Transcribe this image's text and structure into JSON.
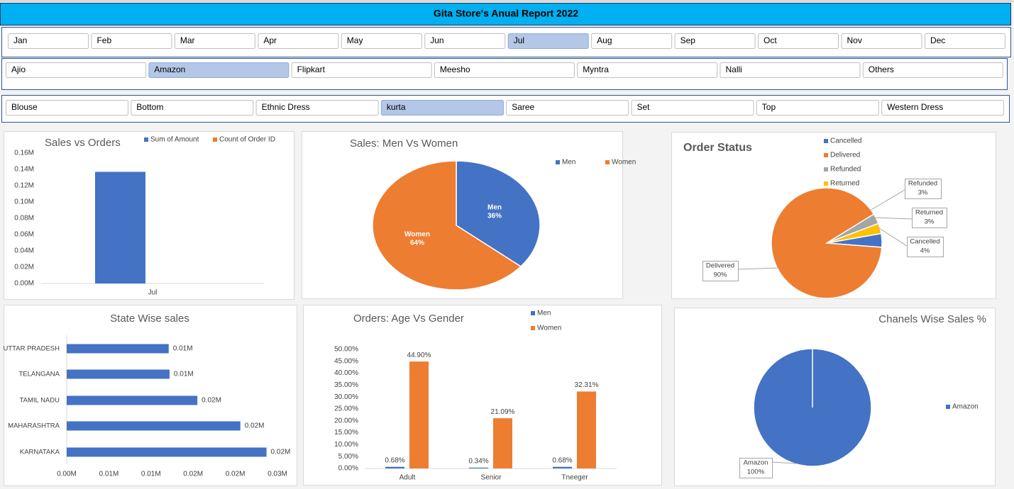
{
  "header": {
    "title": "Gita Store's Anual Report 2022"
  },
  "slicers": [
    {
      "items": [
        "Jan",
        "Feb",
        "Mar",
        "Apr",
        "May",
        "Jun",
        "Jul",
        "Aug",
        "Sep",
        "Oct",
        "Nov",
        "Dec"
      ],
      "selected": 6
    },
    {
      "items": [
        "Ajio",
        "Amazon",
        "Flipkart",
        "Meesho",
        "Myntra",
        "Nalli",
        "Others"
      ],
      "selected": 1
    },
    {
      "items": [
        "Blouse",
        "Bottom",
        "Ethnic Dress",
        "kurta",
        "Saree",
        "Set",
        "Top",
        "Western Dress"
      ],
      "selected": 3
    }
  ],
  "chart_data": [
    {
      "type": "bar",
      "title": "Sales vs Orders",
      "categories": [
        "Jul"
      ],
      "series": [
        {
          "name": "Sum of Amount",
          "color": "#4472c4",
          "values": [
            0.137
          ]
        },
        {
          "name": "Count of Order ID",
          "color": "#ed7d31",
          "values": [
            0
          ]
        }
      ],
      "ylim": [
        0,
        0.16
      ],
      "yticks": [
        {
          "value": 0,
          "label": "0.00M"
        },
        {
          "value": 0.02,
          "label": "0.02M"
        },
        {
          "value": 0.04,
          "label": "0.04M"
        },
        {
          "value": 0.06,
          "label": "0.06M"
        },
        {
          "value": 0.08,
          "label": "0.08M"
        },
        {
          "value": 0.1,
          "label": "0.10M"
        },
        {
          "value": 0.12,
          "label": "0.12M"
        },
        {
          "value": 0.14,
          "label": "0.14M"
        },
        {
          "value": 0.16,
          "label": "0.16M"
        }
      ],
      "legend": "top"
    },
    {
      "type": "pie",
      "title": "Sales: Men Vs Women",
      "categories": [
        "Men",
        "Women"
      ],
      "values": [
        36,
        64
      ],
      "value_labels": [
        "36%",
        "64%"
      ],
      "colors": [
        "#4472c4",
        "#ed7d31"
      ],
      "legend": "top"
    },
    {
      "type": "pie",
      "title": "Order Status",
      "categories": [
        "Cancelled",
        "Delivered",
        "Refunded",
        "Returned"
      ],
      "values": [
        4,
        90,
        3,
        3
      ],
      "value_labels": [
        "4%",
        "90%",
        "3%",
        "3%"
      ],
      "colors": [
        "#4472c4",
        "#ed7d31",
        "#a5a5a5",
        "#ffc000"
      ],
      "legend": "top"
    },
    {
      "type": "hbar",
      "title": "State Wise sales",
      "categories": [
        "UTTAR PRADESH",
        "TELANGANA",
        "TAMIL NADU",
        "MAHARASHTRA",
        "KARNATAKA"
      ],
      "values": [
        0.0121,
        0.0122,
        0.0155,
        0.0206,
        0.0237
      ],
      "value_labels": [
        "0.01M",
        "0.01M",
        "0.02M",
        "0.02M",
        "0.02M"
      ],
      "color": "#4472c4",
      "xlim": [
        0,
        0.025
      ],
      "xticks": [
        {
          "value": 0,
          "label": "0.00M"
        },
        {
          "value": 0.005,
          "label": "0.01M"
        },
        {
          "value": 0.01,
          "label": "0.01M"
        },
        {
          "value": 0.015,
          "label": "0.02M"
        },
        {
          "value": 0.02,
          "label": "0.02M"
        },
        {
          "value": 0.025,
          "label": "0.03M"
        }
      ]
    },
    {
      "type": "bar",
      "title": "Orders: Age Vs Gender",
      "categories": [
        "Adult",
        "Senior",
        "Tneeger"
      ],
      "series": [
        {
          "name": "Men",
          "color": "#4472c4",
          "values": [
            0.68,
            0.34,
            0.68
          ],
          "value_labels": [
            "0.68%",
            "0.34%",
            "0.68%"
          ]
        },
        {
          "name": "Women",
          "color": "#ed7d31",
          "values": [
            44.9,
            21.09,
            32.31
          ],
          "value_labels": [
            "44.90%",
            "21.09%",
            "32.31%"
          ]
        }
      ],
      "ylim": [
        0,
        50
      ],
      "yticks": [
        {
          "value": 0,
          "label": "0.00%"
        },
        {
          "value": 5,
          "label": "5.00%"
        },
        {
          "value": 10,
          "label": "10.00%"
        },
        {
          "value": 15,
          "label": "15.00%"
        },
        {
          "value": 20,
          "label": "20.00%"
        },
        {
          "value": 25,
          "label": "25.00%"
        },
        {
          "value": 30,
          "label": "30.00%"
        },
        {
          "value": 35,
          "label": "35.00%"
        },
        {
          "value": 40,
          "label": "40.00%"
        },
        {
          "value": 45,
          "label": "45.00%"
        },
        {
          "value": 50,
          "label": "50.00%"
        }
      ],
      "legend": "top"
    },
    {
      "type": "pie",
      "title": "Chanels Wise Sales %",
      "categories": [
        "Amazon"
      ],
      "values": [
        100
      ],
      "value_labels": [
        "100%"
      ],
      "colors": [
        "#4472c4"
      ],
      "legend": "right"
    }
  ]
}
